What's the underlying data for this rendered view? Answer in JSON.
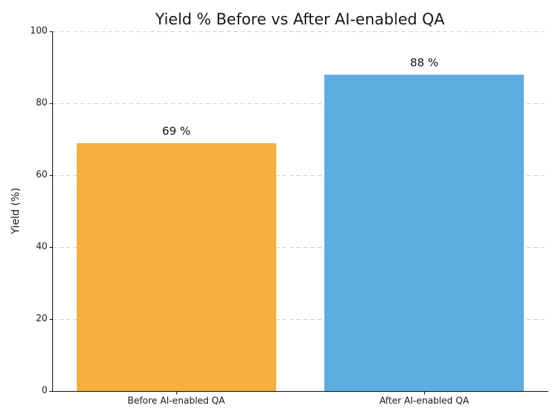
{
  "chart_data": {
    "type": "bar",
    "title": "Yield % Before vs After AI-enabled QA",
    "ylabel": "Yield (%)",
    "xlabel": "",
    "categories": [
      "Before AI-enabled QA",
      "After AI-enabled QA"
    ],
    "values": [
      69,
      88
    ],
    "value_labels": [
      "69 %",
      "88 %"
    ],
    "bar_colors": [
      "#F5B041",
      "#5DADE2"
    ],
    "yticks": [
      0,
      20,
      40,
      60,
      80,
      100
    ],
    "ylim": [
      0,
      100
    ],
    "grid": "horizontal dashed",
    "legend": "none",
    "background_color": "#FFFFFF",
    "text_color": "#1A1A1A",
    "grid_color": "#CCCCCC",
    "axis_color": "#000000"
  }
}
